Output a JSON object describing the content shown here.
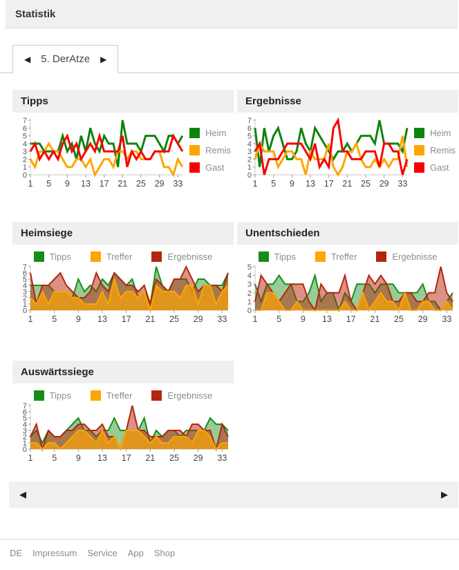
{
  "header": {
    "title": "Statistik"
  },
  "tabs": {
    "prev_icon": "◀",
    "next_icon": "▶",
    "active_label": "5. DerAtze"
  },
  "pager": {
    "prev_icon": "◀",
    "next_icon": "▶"
  },
  "footer": {
    "links": [
      "DE",
      "Impressum",
      "Service",
      "App",
      "Shop"
    ]
  },
  "colors": {
    "panel_header_bg": "#efefef",
    "bar_bg": "#f0f0f0",
    "heim_green": "#0d840d",
    "remis_orange": "#ffa500",
    "gast_red": "#f80000",
    "tipps_green": "#188c18",
    "treffer_orange": "#ffa500",
    "ergebnisse_darkred": "#b3260c"
  },
  "chart_data": [
    {
      "id": "tipps",
      "title": "Tipps",
      "type": "line",
      "ylim": [
        0,
        7
      ],
      "x": "Spieltag 1-34",
      "x_ticks": [
        1,
        5,
        9,
        13,
        17,
        21,
        25,
        29,
        33
      ],
      "legend_position": "right",
      "grid": false,
      "series": [
        {
          "name": "Heim",
          "color": "#0d840d",
          "values": [
            4,
            4,
            4,
            3,
            3,
            3,
            3,
            5,
            3,
            4,
            2,
            5,
            3,
            6,
            4,
            3,
            5,
            4,
            4,
            1,
            7,
            4,
            4,
            4,
            3,
            5,
            5,
            5,
            4,
            3,
            5,
            5,
            4,
            5
          ]
        },
        {
          "name": "Remis",
          "color": "#ffa500",
          "values": [
            2,
            1,
            3,
            3,
            4,
            3,
            3,
            2,
            1,
            1,
            2,
            2,
            1,
            2,
            0,
            1,
            2,
            2,
            1,
            3,
            3,
            2,
            3,
            3,
            2,
            2,
            2,
            3,
            3,
            1,
            1,
            0,
            2,
            1
          ]
        },
        {
          "name": "Gast",
          "color": "#f80000",
          "values": [
            3,
            4,
            2,
            3,
            2,
            3,
            2,
            4,
            5,
            3,
            4,
            2,
            3,
            4,
            3,
            5,
            3,
            3,
            3,
            3,
            5,
            1,
            3,
            2,
            3,
            2,
            2,
            3,
            3,
            3,
            3,
            5,
            4,
            3
          ]
        }
      ]
    },
    {
      "id": "ergebnisse",
      "title": "Ergebnisse",
      "type": "line",
      "ylim": [
        0,
        7
      ],
      "x": "Spieltag 1-34",
      "x_ticks": [
        1,
        5,
        9,
        13,
        17,
        21,
        25,
        29,
        33
      ],
      "legend_position": "right",
      "grid": false,
      "series": [
        {
          "name": "Heim",
          "color": "#0d840d",
          "values": [
            6,
            1,
            6,
            3,
            5,
            6,
            4,
            2,
            2,
            3,
            6,
            4,
            3,
            6,
            5,
            4,
            3,
            2,
            3,
            3,
            4,
            3,
            4,
            5,
            5,
            5,
            4,
            7,
            4,
            4,
            4,
            4,
            3,
            6
          ]
        },
        {
          "name": "Remis",
          "color": "#ffa500",
          "values": [
            2,
            4,
            3,
            3,
            3,
            1,
            2,
            3,
            3,
            2,
            2,
            0,
            3,
            2,
            2,
            2,
            4,
            1,
            0,
            1,
            3,
            3,
            4,
            2,
            1,
            1,
            2,
            1,
            2,
            1,
            2,
            2,
            5,
            1
          ]
        },
        {
          "name": "Gast",
          "color": "#f80000",
          "values": [
            3,
            4,
            0,
            2,
            2,
            2,
            3,
            4,
            4,
            4,
            4,
            3,
            2,
            4,
            1,
            2,
            1,
            6,
            7,
            3,
            3,
            2,
            2,
            2,
            3,
            3,
            3,
            1,
            4,
            4,
            3,
            3,
            0,
            2
          ]
        }
      ]
    },
    {
      "id": "heimsiege",
      "title": "Heimsiege",
      "type": "area",
      "ylim": [
        0,
        7
      ],
      "x": "Spieltag 1-34",
      "x_ticks": [
        1,
        5,
        9,
        13,
        17,
        21,
        25,
        29,
        33
      ],
      "legend_position": "top",
      "grid": false,
      "series": [
        {
          "name": "Tipps",
          "color": "#188c18",
          "fill_opacity": 0.45,
          "values": [
            4,
            4,
            4,
            4,
            3,
            3,
            3,
            2,
            5,
            3,
            4,
            3,
            5,
            4,
            6,
            5,
            4,
            5,
            2,
            3,
            1,
            7,
            4,
            3,
            5,
            5,
            5,
            3,
            5,
            5,
            4,
            4,
            4,
            6
          ]
        },
        {
          "name": "Treffer",
          "color": "#ffa500",
          "fill_opacity": 0.65,
          "values": [
            2,
            1,
            3,
            1,
            3,
            3,
            3,
            2,
            2,
            1,
            1,
            1,
            3,
            1,
            5,
            2,
            3,
            3,
            2,
            3,
            0,
            4,
            3,
            3,
            3,
            2,
            4,
            4,
            1,
            4,
            4,
            1,
            3,
            4
          ]
        },
        {
          "name": "Ergebnisse",
          "color": "#b3260c",
          "fill_opacity": 0.5,
          "values": [
            6,
            1,
            4,
            4,
            5,
            6,
            4,
            3,
            2,
            2,
            3,
            6,
            4,
            3,
            6,
            5,
            4,
            4,
            3,
            4,
            1,
            5,
            4,
            3,
            5,
            5,
            7,
            5,
            3,
            4,
            4,
            4,
            3,
            6
          ]
        }
      ]
    },
    {
      "id": "unentschieden",
      "title": "Unentschieden",
      "type": "area",
      "ylim": [
        0,
        5
      ],
      "x": "Spieltag 1-34",
      "x_ticks": [
        1,
        5,
        9,
        13,
        17,
        21,
        25,
        29,
        33
      ],
      "legend_position": "top",
      "grid": false,
      "series": [
        {
          "name": "Tipps",
          "color": "#188c18",
          "fill_opacity": 0.45,
          "values": [
            3,
            1,
            3,
            3,
            4,
            3,
            3,
            1,
            1,
            2,
            4,
            1,
            2,
            2,
            0,
            2,
            1,
            3,
            3,
            3,
            2,
            3,
            3,
            3,
            2,
            2,
            2,
            2,
            3,
            1,
            1,
            0,
            1,
            2
          ]
        },
        {
          "name": "Treffer",
          "color": "#ffa500",
          "fill_opacity": 0.65,
          "values": [
            0,
            0,
            2,
            2,
            1,
            0,
            0,
            1,
            0,
            0,
            0,
            0,
            0,
            0,
            0,
            1,
            0,
            0,
            2,
            0,
            1,
            2,
            1,
            1,
            0,
            2,
            0,
            0,
            1,
            1,
            0,
            0,
            1,
            0
          ]
        },
        {
          "name": "Ergebnisse",
          "color": "#b3260c",
          "fill_opacity": 0.5,
          "values": [
            1,
            4,
            3,
            2,
            1,
            2,
            3,
            3,
            3,
            1,
            0,
            3,
            2,
            2,
            2,
            4,
            1,
            0,
            2,
            4,
            3,
            4,
            3,
            1,
            1,
            2,
            2,
            1,
            1,
            2,
            2,
            5,
            2,
            1
          ]
        }
      ]
    },
    {
      "id": "auswaertssiege",
      "title": "Auswärtssiege",
      "type": "area",
      "ylim": [
        0,
        7
      ],
      "x": "Spieltag 1-34",
      "x_ticks": [
        1,
        5,
        9,
        13,
        17,
        21,
        25,
        29,
        33
      ],
      "legend_position": "top",
      "grid": false,
      "series": [
        {
          "name": "Tipps",
          "color": "#188c18",
          "fill_opacity": 0.45,
          "values": [
            2,
            3,
            1,
            3,
            2,
            2,
            3,
            4,
            5,
            3,
            3,
            2,
            3,
            3,
            5,
            3,
            3,
            3,
            3,
            5,
            1,
            3,
            2,
            3,
            3,
            2,
            3,
            3,
            3,
            3,
            5,
            4,
            4,
            3
          ]
        },
        {
          "name": "Treffer",
          "color": "#ffa500",
          "fill_opacity": 0.65,
          "values": [
            1,
            1,
            0,
            1,
            1,
            0,
            1,
            2,
            3,
            3,
            2,
            1,
            3,
            1,
            2,
            0,
            3,
            3,
            3,
            2,
            1,
            2,
            1,
            1,
            2,
            2,
            2,
            1,
            3,
            3,
            2,
            0,
            1,
            1
          ]
        },
        {
          "name": "Ergebnisse",
          "color": "#b3260c",
          "fill_opacity": 0.5,
          "values": [
            2,
            4,
            0,
            3,
            2,
            2,
            3,
            3,
            4,
            4,
            3,
            3,
            4,
            2,
            2,
            0,
            3,
            7,
            3,
            3,
            2,
            2,
            2,
            3,
            3,
            3,
            2,
            4,
            4,
            3,
            3,
            0,
            4,
            2
          ]
        }
      ]
    }
  ]
}
